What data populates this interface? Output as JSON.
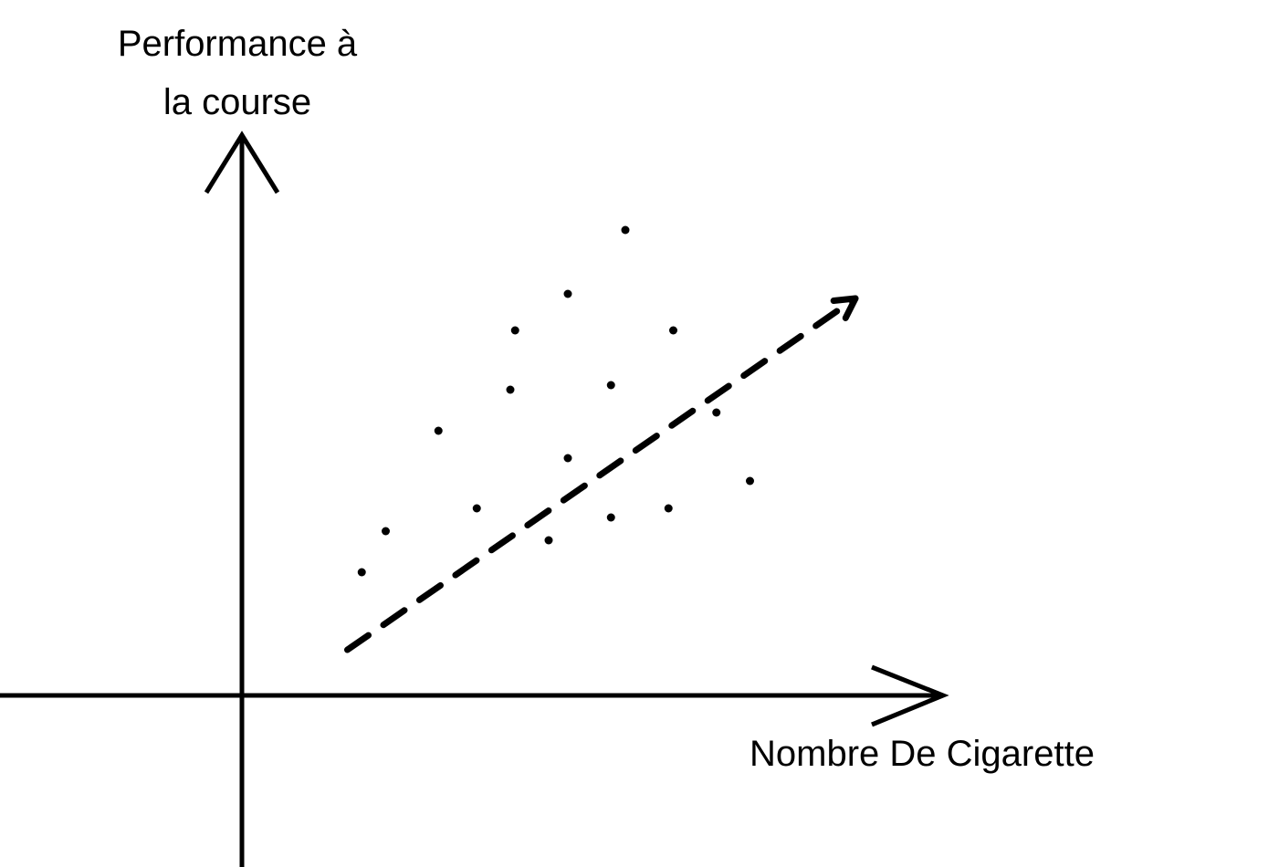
{
  "chart_data": {
    "type": "scatter",
    "ylabel_lines": [
      "Performance à",
      "la course"
    ],
    "xlabel": "Nombre De Cigarette",
    "points": [
      {
        "x": 1.25,
        "y": 1.35
      },
      {
        "x": 1.5,
        "y": 1.8
      },
      {
        "x": 2.05,
        "y": 2.9
      },
      {
        "x": 2.45,
        "y": 2.05
      },
      {
        "x": 2.8,
        "y": 3.35
      },
      {
        "x": 2.85,
        "y": 4.0
      },
      {
        "x": 3.2,
        "y": 1.7
      },
      {
        "x": 3.4,
        "y": 2.6
      },
      {
        "x": 3.4,
        "y": 4.4
      },
      {
        "x": 3.85,
        "y": 3.4
      },
      {
        "x": 3.85,
        "y": 1.95
      },
      {
        "x": 4.0,
        "y": 5.1
      },
      {
        "x": 4.45,
        "y": 2.05
      },
      {
        "x": 4.5,
        "y": 4.0
      },
      {
        "x": 4.95,
        "y": 3.1
      },
      {
        "x": 5.3,
        "y": 2.35
      }
    ],
    "trend": {
      "style": "dashed-arrow",
      "from": {
        "x": 1.1,
        "y": 0.5
      },
      "to": {
        "x": 6.4,
        "y": 4.35
      }
    },
    "xlim": [
      0,
      7
    ],
    "ylim": [
      0,
      6
    ],
    "ticks": false,
    "grid": false,
    "colors": {
      "ink": "#000000",
      "background": "#ffffff"
    }
  }
}
